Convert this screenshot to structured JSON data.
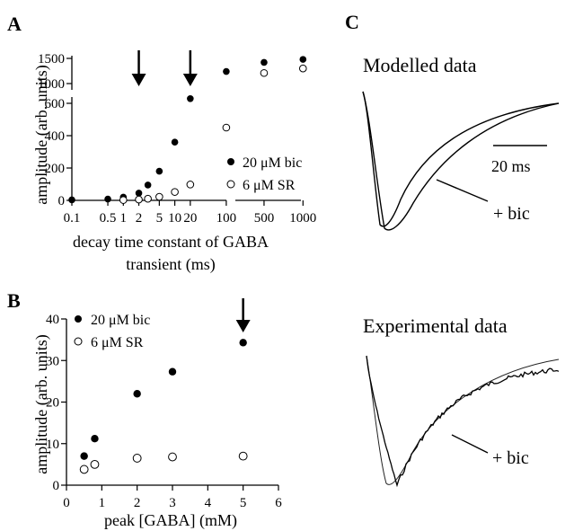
{
  "panels": {
    "a": {
      "letter": "A"
    },
    "b": {
      "letter": "B"
    },
    "c": {
      "letter": "C"
    }
  },
  "chart_data": [
    {
      "panel": "A",
      "type": "scatter",
      "xlabel": "decay time constant of GABA transient (ms)",
      "ylabel": "amplitude (arb. units)",
      "x_scale": "log (broken at ~300 ms)",
      "x_ticks": [
        "0.1",
        "0.5",
        "1",
        "2",
        "5",
        "10",
        "20",
        "100",
        "500",
        "1000"
      ],
      "y_ticks_lower": [
        "0",
        "200",
        "400",
        "600"
      ],
      "y_ticks_upper": [
        "1000",
        "1500"
      ],
      "ylim_lower": [
        0,
        600
      ],
      "ylim_upper": [
        1000,
        1500
      ],
      "arrows_at_x": [
        2,
        20
      ],
      "legend_position": "right",
      "series": [
        {
          "name": "20 μM bic",
          "marker": "filled-circle",
          "x": [
            0.1,
            0.5,
            1,
            2,
            3,
            5,
            10,
            20,
            100,
            500,
            1000
          ],
          "y": [
            3,
            8,
            20,
            45,
            95,
            180,
            360,
            700,
            1240,
            1420,
            1480
          ]
        },
        {
          "name": "6 μM SR",
          "marker": "open-circle",
          "x": [
            1,
            2,
            3,
            5,
            10,
            20,
            100,
            500,
            1000
          ],
          "y": [
            2,
            5,
            10,
            22,
            52,
            98,
            450,
            1210,
            1300
          ]
        }
      ]
    },
    {
      "panel": "B",
      "type": "scatter",
      "xlabel": "peak [GABA] (mM)",
      "ylabel": "amplitude (arb. units)",
      "x_ticks": [
        "0",
        "1",
        "2",
        "3",
        "4",
        "5",
        "6"
      ],
      "y_ticks": [
        "0",
        "10",
        "20",
        "30",
        "40"
      ],
      "xlim": [
        0,
        6
      ],
      "ylim": [
        0,
        40
      ],
      "arrows_at_x": [
        5
      ],
      "legend_position": "top-left",
      "series": [
        {
          "name": "20 μM bic",
          "marker": "filled-circle",
          "x": [
            0.5,
            0.8,
            2,
            3,
            5
          ],
          "y": [
            7,
            11.2,
            22,
            27.3,
            34.3
          ]
        },
        {
          "name": "6 μM SR",
          "marker": "open-circle",
          "x": [
            0.5,
            0.8,
            2,
            3,
            5
          ],
          "y": [
            3.8,
            5,
            6.5,
            6.8,
            7
          ]
        }
      ]
    },
    {
      "panel": "C",
      "type": "line",
      "traces": [
        {
          "title": "Modelled data",
          "annotation": "+ bic",
          "scalebar_label": "20 ms"
        },
        {
          "title": "Experimental data",
          "annotation": "+ bic"
        }
      ]
    }
  ]
}
